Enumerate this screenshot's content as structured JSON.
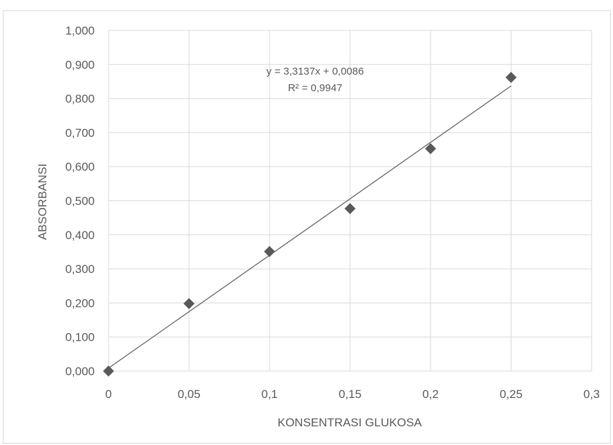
{
  "chart_data": {
    "type": "scatter",
    "title": "",
    "xlabel": "KONSENTRASI GLUKOSA",
    "ylabel": "ABSORBANSI",
    "xlim": [
      0,
      0.3
    ],
    "ylim": [
      0,
      1.0
    ],
    "x_ticks": [
      "0",
      "0,05",
      "0,1",
      "0,15",
      "0,2",
      "0,25",
      "0,3"
    ],
    "x_tick_values": [
      0,
      0.05,
      0.1,
      0.15,
      0.2,
      0.25,
      0.3
    ],
    "y_ticks": [
      "0,000",
      "0,100",
      "0,200",
      "0,300",
      "0,400",
      "0,500",
      "0,600",
      "0,700",
      "0,800",
      "0,900",
      "1,000"
    ],
    "y_tick_values": [
      0,
      0.1,
      0.2,
      0.3,
      0.4,
      0.5,
      0.6,
      0.7,
      0.8,
      0.9,
      1.0
    ],
    "grid": true,
    "marker": "diamond",
    "marker_color": "#595959",
    "series": [
      {
        "x": [
          0,
          0.05,
          0.1,
          0.15,
          0.2,
          0.25
        ],
        "y": [
          0.0,
          0.198,
          0.351,
          0.477,
          0.653,
          0.862
        ]
      }
    ],
    "trendline": {
      "type": "linear",
      "slope": 3.3137,
      "intercept": 0.0086,
      "x_range": [
        0,
        0.25
      ],
      "equation_label": "y = 3,3137x + 0,0086",
      "r2_label": "R² = 0,9947"
    }
  }
}
